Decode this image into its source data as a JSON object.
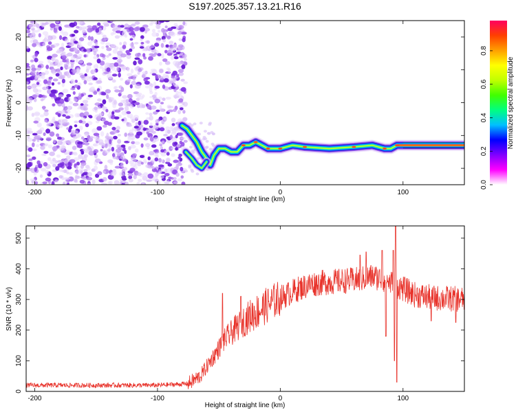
{
  "chart_data": [
    {
      "type": "heatmap",
      "title": "S197.2025.357.13.21.R16",
      "xlabel": "Height of straight line (km)",
      "ylabel": "Frequency (Hz)",
      "xlim": [
        -207,
        150
      ],
      "ylim": [
        -25,
        25
      ],
      "xticks": [
        -200,
        -100,
        0,
        100
      ],
      "yticks": [
        20,
        10,
        0,
        -10,
        -20
      ],
      "colorbar": {
        "label": "Normalized spectral amplitude",
        "range": [
          0.0,
          0.98
        ],
        "ticks": [
          0.0,
          0.2,
          0.4,
          0.6,
          0.8
        ],
        "colormap": [
          "#ffffff",
          "#ff00ff",
          "#8000ff",
          "#0000ff",
          "#00c0ff",
          "#00ff80",
          "#40ff00",
          "#c0ff00",
          "#ffff00",
          "#ffa000",
          "#ff4000",
          "#ff0060"
        ]
      },
      "noise_region": {
        "x": [
          -207,
          -80
        ],
        "y": [
          -25,
          25
        ],
        "amplitude": [
          0.0,
          0.12
        ]
      },
      "signal_track": [
        {
          "x": -80,
          "f": -7
        },
        {
          "x": -76,
          "f": -8
        },
        {
          "x": -72,
          "f": -10
        },
        {
          "x": -68,
          "f": -12
        },
        {
          "x": -64,
          "f": -15
        },
        {
          "x": -60,
          "f": -17
        },
        {
          "x": -57,
          "f": -19
        },
        {
          "x": -54,
          "f": -16
        },
        {
          "x": -50,
          "f": -14
        },
        {
          "x": -45,
          "f": -14
        },
        {
          "x": -40,
          "f": -15
        },
        {
          "x": -35,
          "f": -15
        },
        {
          "x": -30,
          "f": -13
        },
        {
          "x": -25,
          "f": -13
        },
        {
          "x": -20,
          "f": -12
        },
        {
          "x": -15,
          "f": -13
        },
        {
          "x": -10,
          "f": -14
        },
        {
          "x": -5,
          "f": -14
        },
        {
          "x": 0,
          "f": -14
        },
        {
          "x": 10,
          "f": -13
        },
        {
          "x": 20,
          "f": -13.5
        },
        {
          "x": 40,
          "f": -14
        },
        {
          "x": 60,
          "f": -13.5
        },
        {
          "x": 75,
          "f": -13
        },
        {
          "x": 85,
          "f": -14
        },
        {
          "x": 90,
          "f": -14
        },
        {
          "x": 95,
          "f": -13
        },
        {
          "x": 110,
          "f": -13
        },
        {
          "x": 150,
          "f": -13
        }
      ],
      "lower_branch": [
        {
          "x": -77,
          "f": -15
        },
        {
          "x": -72,
          "f": -17
        },
        {
          "x": -68,
          "f": -19
        },
        {
          "x": -64,
          "f": -20
        },
        {
          "x": -60,
          "f": -18
        }
      ]
    },
    {
      "type": "line",
      "xlabel": "Height of straight line (km)",
      "ylabel": "SNR (10 * v/v)",
      "xlim": [
        -207,
        150
      ],
      "ylim": [
        0,
        540
      ],
      "xticks": [
        -200,
        -100,
        0,
        100
      ],
      "yticks": [
        0,
        100,
        200,
        300,
        400,
        500
      ],
      "series": [
        {
          "name": "SNR",
          "color": "#e8332b",
          "noise_amplitude": 25,
          "trend": [
            {
              "x": -207,
              "y": 20
            },
            {
              "x": -150,
              "y": 20
            },
            {
              "x": -100,
              "y": 20
            },
            {
              "x": -75,
              "y": 25
            },
            {
              "x": -65,
              "y": 50
            },
            {
              "x": -55,
              "y": 110
            },
            {
              "x": -45,
              "y": 170
            },
            {
              "x": -35,
              "y": 210
            },
            {
              "x": -25,
              "y": 245
            },
            {
              "x": -15,
              "y": 270
            },
            {
              "x": -5,
              "y": 295
            },
            {
              "x": 5,
              "y": 315
            },
            {
              "x": 15,
              "y": 335
            },
            {
              "x": 25,
              "y": 350
            },
            {
              "x": 35,
              "y": 355
            },
            {
              "x": 50,
              "y": 360
            },
            {
              "x": 65,
              "y": 365
            },
            {
              "x": 75,
              "y": 375
            },
            {
              "x": 85,
              "y": 365
            },
            {
              "x": 95,
              "y": 345
            },
            {
              "x": 110,
              "y": 315
            },
            {
              "x": 125,
              "y": 305
            },
            {
              "x": 150,
              "y": 300
            }
          ],
          "peaks": [
            {
              "x": -47,
              "y": 320
            },
            {
              "x": -32,
              "y": 310
            },
            {
              "x": 65,
              "y": 445
            },
            {
              "x": 70,
              "y": 455
            },
            {
              "x": 83,
              "y": 460
            },
            {
              "x": 92,
              "y": 460
            },
            {
              "x": 94,
              "y": 540
            },
            {
              "x": 95,
              "y": 500
            }
          ],
          "dips": [
            {
              "x": 95,
              "y": 30
            },
            {
              "x": 93,
              "y": 100
            },
            {
              "x": 86,
              "y": 180
            },
            {
              "x": 123,
              "y": 230
            },
            {
              "x": 143,
              "y": 225
            }
          ]
        }
      ]
    }
  ]
}
